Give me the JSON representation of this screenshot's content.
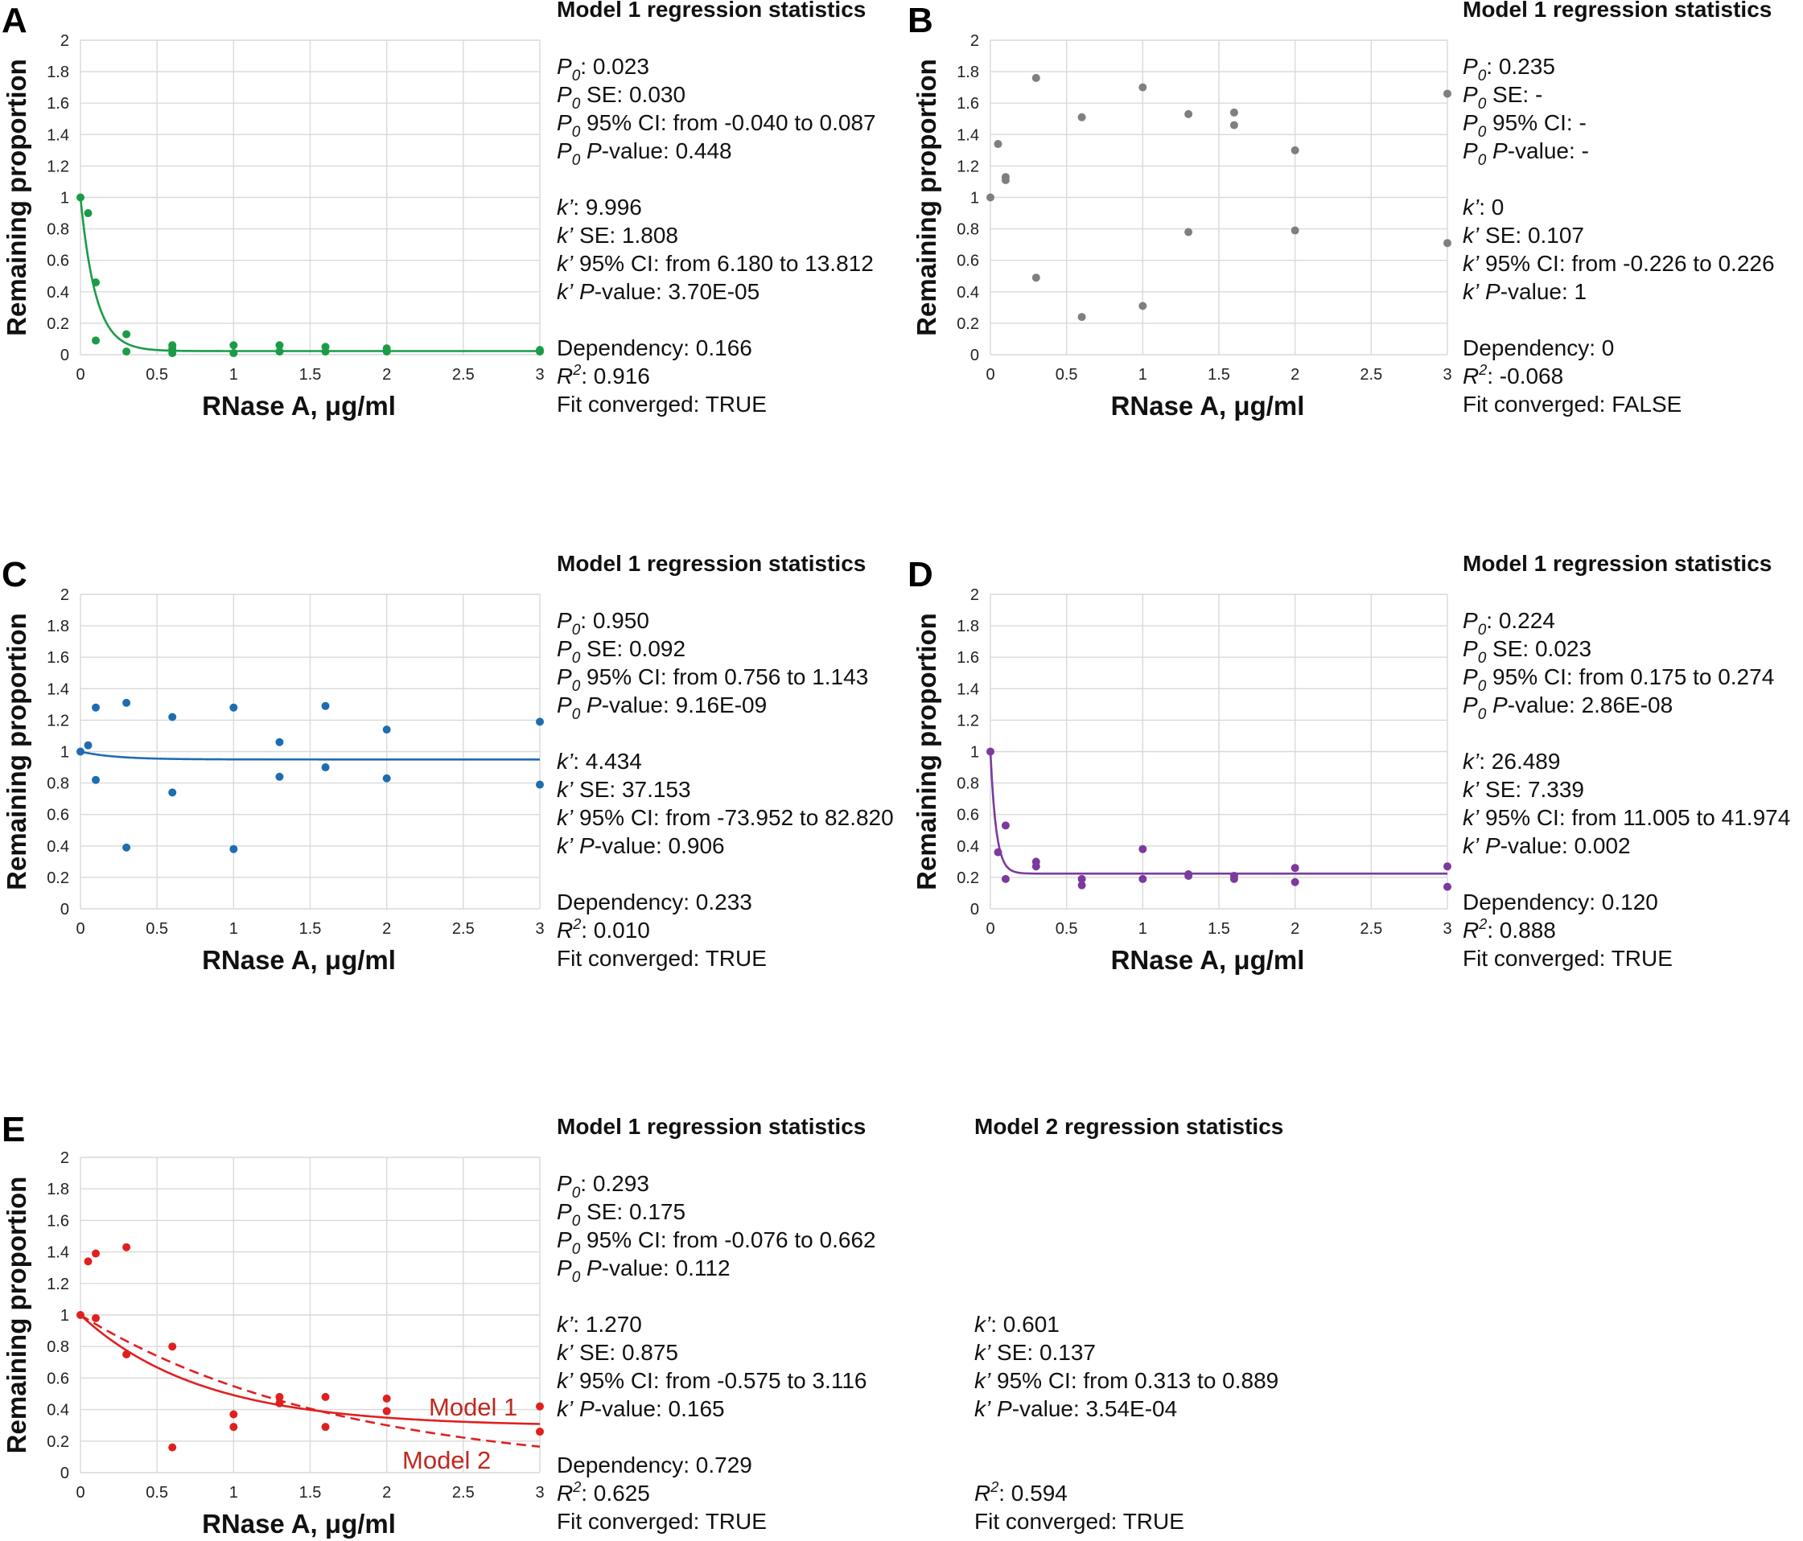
{
  "chart_data": [
    {
      "panel": "A",
      "type": "scatter",
      "xlabel": "RNase A, μg/ml",
      "ylabel": "Remaining proportion",
      "xlim": [
        0,
        3
      ],
      "ylim": [
        0,
        2
      ],
      "x_ticks": [
        "0",
        "0.5",
        "1",
        "1.5",
        "2",
        "2.5",
        "3"
      ],
      "y_ticks": [
        "0",
        "0.2",
        "0.4",
        "0.6",
        "0.8",
        "1",
        "1.2",
        "1.4",
        "1.6",
        "1.8",
        "2"
      ],
      "grid": true,
      "color": "#1a9c47",
      "points": [
        [
          0,
          1
        ],
        [
          0.05,
          0.9
        ],
        [
          0.1,
          0.46
        ],
        [
          0.1,
          0.09
        ],
        [
          0.3,
          0.13
        ],
        [
          0.3,
          0.02
        ],
        [
          0.6,
          0.06
        ],
        [
          0.6,
          0.04
        ],
        [
          0.6,
          0.01
        ],
        [
          1,
          0.06
        ],
        [
          1,
          0.01
        ],
        [
          1.3,
          0.06
        ],
        [
          1.3,
          0.02
        ],
        [
          1.6,
          0.05
        ],
        [
          1.6,
          0.02
        ],
        [
          2,
          0.04
        ],
        [
          2,
          0.02
        ],
        [
          3,
          0.03
        ],
        [
          3,
          0.02
        ]
      ],
      "fit": {
        "model": 1,
        "p0": 0.023,
        "k": 9.996,
        "style": "solid"
      }
    },
    {
      "panel": "B",
      "type": "scatter",
      "xlabel": "RNase A, μg/ml",
      "ylabel": "Remaining proportion",
      "xlim": [
        0,
        3
      ],
      "ylim": [
        0,
        2
      ],
      "x_ticks": [
        "0",
        "0.5",
        "1",
        "1.5",
        "2",
        "2.5",
        "3"
      ],
      "y_ticks": [
        "0",
        "0.2",
        "0.4",
        "0.6",
        "0.8",
        "1",
        "1.2",
        "1.4",
        "1.6",
        "1.8",
        "2"
      ],
      "grid": true,
      "color": "#7f7f7f",
      "points": [
        [
          0,
          1
        ],
        [
          0.05,
          1.34
        ],
        [
          0.1,
          1.11
        ],
        [
          0.1,
          1.13
        ],
        [
          0.3,
          1.76
        ],
        [
          0.3,
          0.49
        ],
        [
          0.6,
          1.51
        ],
        [
          0.6,
          0.24
        ],
        [
          1,
          1.7
        ],
        [
          1,
          0.31
        ],
        [
          1.3,
          1.53
        ],
        [
          1.3,
          0.78
        ],
        [
          1.6,
          1.54
        ],
        [
          1.6,
          1.46
        ],
        [
          2,
          1.3
        ],
        [
          2,
          0.79
        ],
        [
          3,
          1.66
        ],
        [
          3,
          0.71
        ]
      ]
    },
    {
      "panel": "C",
      "type": "scatter",
      "xlabel": "RNase A, μg/ml",
      "ylabel": "Remaining proportion",
      "xlim": [
        0,
        3
      ],
      "ylim": [
        0,
        2
      ],
      "x_ticks": [
        "0",
        "0.5",
        "1",
        "1.5",
        "2",
        "2.5",
        "3"
      ],
      "y_ticks": [
        "0",
        "0.2",
        "0.4",
        "0.6",
        "0.8",
        "1",
        "1.2",
        "1.4",
        "1.6",
        "1.8",
        "2"
      ],
      "grid": true,
      "color": "#1f6db0",
      "points": [
        [
          0,
          1
        ],
        [
          0.05,
          1.04
        ],
        [
          0.1,
          1.28
        ],
        [
          0.1,
          0.82
        ],
        [
          0.3,
          1.31
        ],
        [
          0.3,
          0.39
        ],
        [
          0.6,
          1.22
        ],
        [
          0.6,
          0.74
        ],
        [
          1,
          1.28
        ],
        [
          1,
          0.38
        ],
        [
          1.3,
          1.06
        ],
        [
          1.3,
          0.84
        ],
        [
          1.6,
          1.29
        ],
        [
          1.6,
          0.9
        ],
        [
          2,
          1.14
        ],
        [
          2,
          0.83
        ],
        [
          3,
          1.19
        ],
        [
          3,
          0.79
        ]
      ],
      "fit": {
        "model": 1,
        "p0": 0.95,
        "k": 4.434,
        "style": "solid"
      }
    },
    {
      "panel": "D",
      "type": "scatter",
      "xlabel": "RNase A, μg/ml",
      "ylabel": "Remaining proportion",
      "xlim": [
        0,
        3
      ],
      "ylim": [
        0,
        2
      ],
      "x_ticks": [
        "0",
        "0.5",
        "1",
        "1.5",
        "2",
        "2.5",
        "3"
      ],
      "y_ticks": [
        "0",
        "0.2",
        "0.4",
        "0.6",
        "0.8",
        "1",
        "1.2",
        "1.4",
        "1.6",
        "1.8",
        "2"
      ],
      "grid": true,
      "color": "#7b3a9c",
      "points": [
        [
          0,
          1
        ],
        [
          0.05,
          0.36
        ],
        [
          0.1,
          0.53
        ],
        [
          0.1,
          0.19
        ],
        [
          0.3,
          0.3
        ],
        [
          0.3,
          0.27
        ],
        [
          0.6,
          0.19
        ],
        [
          0.6,
          0.15
        ],
        [
          1,
          0.38
        ],
        [
          1,
          0.19
        ],
        [
          1.3,
          0.22
        ],
        [
          1.3,
          0.21
        ],
        [
          1.6,
          0.21
        ],
        [
          1.6,
          0.19
        ],
        [
          2,
          0.26
        ],
        [
          2,
          0.17
        ],
        [
          3,
          0.27
        ],
        [
          3,
          0.14
        ]
      ],
      "fit": {
        "model": 1,
        "p0": 0.224,
        "k": 26.489,
        "style": "solid"
      }
    },
    {
      "panel": "E",
      "type": "scatter",
      "xlabel": "RNase A, μg/ml",
      "ylabel": "Remaining proportion",
      "xlim": [
        0,
        3
      ],
      "ylim": [
        0,
        2
      ],
      "x_ticks": [
        "0",
        "0.5",
        "1",
        "1.5",
        "2",
        "2.5",
        "3"
      ],
      "y_ticks": [
        "0",
        "0.2",
        "0.4",
        "0.6",
        "0.8",
        "1",
        "1.2",
        "1.4",
        "1.6",
        "1.8",
        "2"
      ],
      "grid": true,
      "color": "#e02020",
      "points": [
        [
          0,
          1
        ],
        [
          0.05,
          1.34
        ],
        [
          0.1,
          1.39
        ],
        [
          0.1,
          0.98
        ],
        [
          0.3,
          1.43
        ],
        [
          0.3,
          0.75
        ],
        [
          0.6,
          0.8
        ],
        [
          0.6,
          0.16
        ],
        [
          1,
          0.37
        ],
        [
          1,
          0.29
        ],
        [
          1.3,
          0.48
        ],
        [
          1.3,
          0.44
        ],
        [
          1.6,
          0.48
        ],
        [
          1.6,
          0.29
        ],
        [
          2,
          0.47
        ],
        [
          2,
          0.39
        ],
        [
          3,
          0.42
        ],
        [
          3,
          0.26
        ]
      ],
      "fit": {
        "model": 1,
        "p0": 0.293,
        "k": 1.27,
        "style": "solid"
      },
      "fit2": {
        "model": 2,
        "k": 0.601,
        "style": "dashed"
      },
      "curve_labels": [
        "Model 1",
        "Model 2"
      ],
      "curve_label_color": "#c0281e"
    }
  ],
  "stats": {
    "A": {
      "heading": "Model 1 regression statistics",
      "p0_value": "0.023",
      "p0_se": "0.030",
      "p0_ci": "from -0.040 to 0.087",
      "p0_p": "0.448",
      "k_value": "9.996",
      "k_se": "1.808",
      "k_ci": "from 6.180 to 13.812",
      "k_p": "3.70E-05",
      "dependency": "Dependency: 0.166",
      "r2": "0.916",
      "converged": "Fit converged: TRUE"
    },
    "B": {
      "heading": "Model 1 regression statistics",
      "p0_value": "0.235",
      "p0_se": "-",
      "p0_ci": "-",
      "p0_p": "-",
      "k_value": "0",
      "k_se": "0.107",
      "k_ci": "from -0.226 to 0.226",
      "k_p": "1",
      "dependency": "Dependency: 0",
      "r2": "-0.068",
      "converged": "Fit converged: FALSE"
    },
    "C": {
      "heading": "Model 1 regression statistics",
      "p0_value": "0.950",
      "p0_se": "0.092",
      "p0_ci": "from 0.756 to 1.143",
      "p0_p": "9.16E-09",
      "k_value": "4.434",
      "k_se": "37.153",
      "k_ci": "from -73.952 to 82.820",
      "k_p": "0.906",
      "dependency": "Dependency: 0.233",
      "r2": "0.010",
      "converged": "Fit converged: TRUE"
    },
    "D": {
      "heading": "Model 1 regression statistics",
      "p0_value": "0.224",
      "p0_se": "0.023",
      "p0_ci": "from 0.175 to 0.274",
      "p0_p": "2.86E-08",
      "k_value": "26.489",
      "k_se": "7.339",
      "k_ci": "from 11.005 to 41.974",
      "k_p": "0.002",
      "dependency": "Dependency: 0.120",
      "r2": "0.888",
      "converged": "Fit converged: TRUE"
    },
    "E": {
      "heading": "Model 1 regression statistics",
      "p0_value": "0.293",
      "p0_se": "0.175",
      "p0_ci": "from -0.076 to 0.662",
      "p0_p": "0.112",
      "k_value": "1.270",
      "k_se": "0.875",
      "k_ci": "from -0.575 to 3.116",
      "k_p": "0.165",
      "dependency": "Dependency: 0.729",
      "r2": "0.625",
      "converged": "Fit converged: TRUE"
    },
    "E2": {
      "heading": "Model 2 regression statistics",
      "k_value": "0.601",
      "k_se": "0.137",
      "k_ci": "from 0.313 to 0.889",
      "k_p": "3.54E-04",
      "r2": "0.594",
      "converged": "Fit converged: TRUE"
    }
  }
}
